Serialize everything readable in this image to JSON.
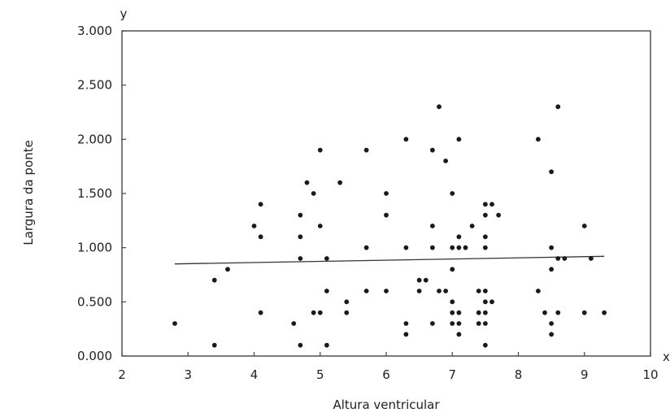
{
  "chart_data": {
    "type": "scatter",
    "title": "",
    "xlabel": "Altura ventricular",
    "ylabel": "Largura da ponte",
    "x_axis_letter": "x",
    "y_axis_letter": "y",
    "xlim": [
      2,
      10
    ],
    "ylim": [
      0,
      3
    ],
    "x_ticks": [
      2,
      3,
      4,
      5,
      6,
      7,
      8,
      9,
      10
    ],
    "x_tick_labels": [
      "2",
      "3",
      "4",
      "5",
      "6",
      "7",
      "8",
      "9",
      "10"
    ],
    "y_ticks": [
      0,
      0.5,
      1,
      1.5,
      2,
      2.5,
      3
    ],
    "y_tick_labels": [
      "0.000",
      "0.500",
      "1.000",
      "1.500",
      "2.000",
      "2.500",
      "3.000"
    ],
    "grid": false,
    "legend": "none",
    "marker_color": "#1a1a1a",
    "line_color": "#333333",
    "trend_line": {
      "x": [
        2.8,
        9.3
      ],
      "y": [
        0.85,
        0.92
      ]
    },
    "points": [
      [
        2.8,
        0.3
      ],
      [
        3.4,
        0.7
      ],
      [
        3.4,
        0.1
      ],
      [
        3.6,
        0.8
      ],
      [
        4.0,
        1.2
      ],
      [
        4.1,
        1.4
      ],
      [
        4.1,
        1.1
      ],
      [
        4.1,
        0.4
      ],
      [
        4.6,
        0.3
      ],
      [
        4.7,
        1.3
      ],
      [
        4.7,
        1.1
      ],
      [
        4.7,
        0.9
      ],
      [
        4.7,
        0.1
      ],
      [
        4.8,
        1.6
      ],
      [
        4.9,
        1.5
      ],
      [
        4.9,
        0.4
      ],
      [
        5.0,
        1.9
      ],
      [
        5.0,
        1.2
      ],
      [
        5.0,
        0.4
      ],
      [
        5.1,
        0.9
      ],
      [
        5.1,
        0.6
      ],
      [
        5.1,
        0.1
      ],
      [
        5.3,
        1.6
      ],
      [
        5.4,
        0.5
      ],
      [
        5.4,
        0.4
      ],
      [
        5.7,
        1.9
      ],
      [
        5.7,
        1.0
      ],
      [
        5.7,
        0.6
      ],
      [
        6.0,
        1.5
      ],
      [
        6.0,
        1.3
      ],
      [
        6.0,
        0.6
      ],
      [
        6.3,
        2.0
      ],
      [
        6.3,
        1.0
      ],
      [
        6.3,
        0.3
      ],
      [
        6.3,
        0.2
      ],
      [
        6.5,
        0.7
      ],
      [
        6.5,
        0.6
      ],
      [
        6.6,
        0.7
      ],
      [
        6.7,
        1.9
      ],
      [
        6.7,
        1.2
      ],
      [
        6.7,
        1.0
      ],
      [
        6.7,
        0.3
      ],
      [
        6.8,
        2.3
      ],
      [
        6.8,
        0.6
      ],
      [
        6.9,
        1.8
      ],
      [
        6.9,
        0.6
      ],
      [
        7.0,
        1.5
      ],
      [
        7.0,
        1.0
      ],
      [
        7.0,
        0.8
      ],
      [
        7.0,
        0.5
      ],
      [
        7.0,
        0.4
      ],
      [
        7.0,
        0.3
      ],
      [
        7.1,
        2.0
      ],
      [
        7.1,
        1.1
      ],
      [
        7.1,
        1.0
      ],
      [
        7.1,
        0.4
      ],
      [
        7.1,
        0.3
      ],
      [
        7.1,
        0.2
      ],
      [
        7.2,
        1.0
      ],
      [
        7.3,
        1.2
      ],
      [
        7.4,
        0.6
      ],
      [
        7.4,
        0.4
      ],
      [
        7.4,
        0.3
      ],
      [
        7.5,
        1.4
      ],
      [
        7.5,
        1.3
      ],
      [
        7.5,
        1.1
      ],
      [
        7.5,
        1.0
      ],
      [
        7.5,
        0.6
      ],
      [
        7.5,
        0.5
      ],
      [
        7.5,
        0.4
      ],
      [
        7.5,
        0.3
      ],
      [
        7.5,
        0.1
      ],
      [
        7.6,
        1.4
      ],
      [
        7.6,
        0.5
      ],
      [
        7.7,
        1.3
      ],
      [
        8.3,
        2.0
      ],
      [
        8.3,
        0.6
      ],
      [
        8.4,
        0.4
      ],
      [
        8.5,
        1.7
      ],
      [
        8.5,
        1.0
      ],
      [
        8.5,
        0.8
      ],
      [
        8.5,
        0.3
      ],
      [
        8.5,
        0.2
      ],
      [
        8.6,
        2.3
      ],
      [
        8.6,
        0.9
      ],
      [
        8.6,
        0.4
      ],
      [
        8.7,
        0.9
      ],
      [
        9.0,
        1.2
      ],
      [
        9.0,
        0.4
      ],
      [
        9.1,
        0.9
      ],
      [
        9.3,
        0.4
      ]
    ]
  }
}
